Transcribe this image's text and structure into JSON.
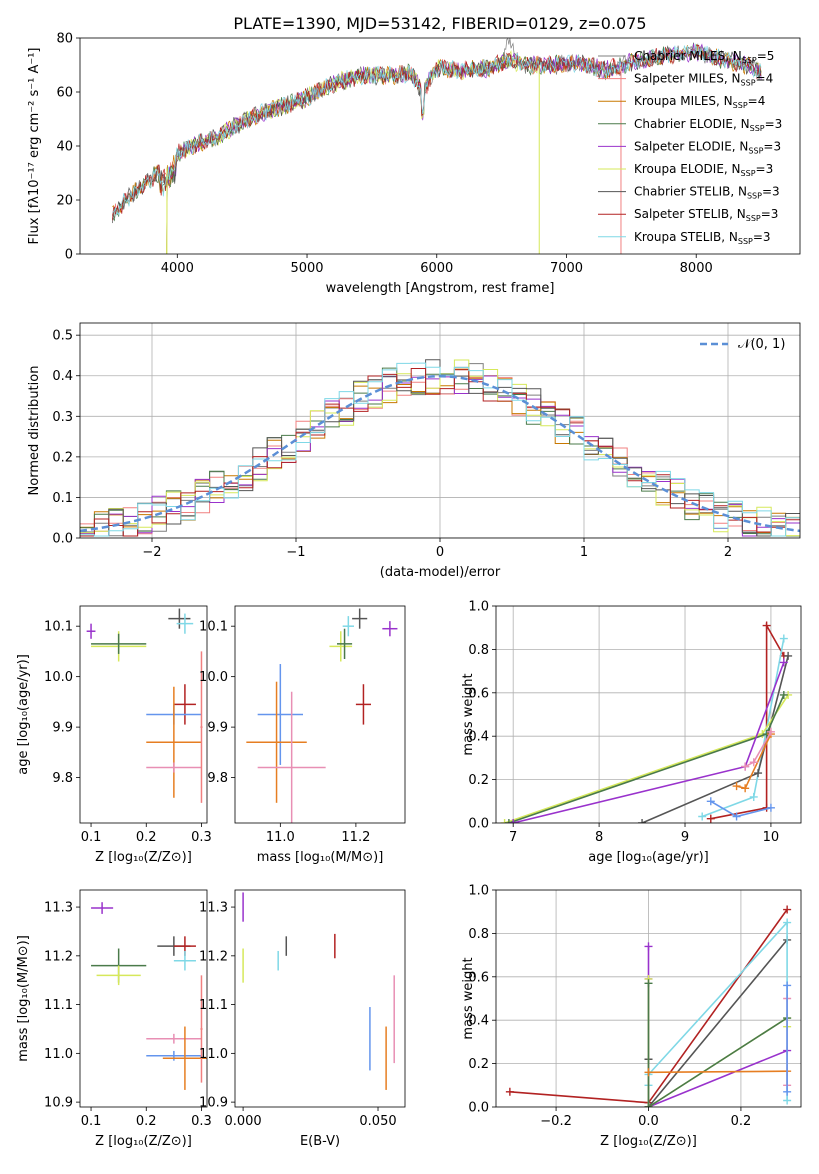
{
  "colors": {
    "chabrier_miles": "#7f7f7f",
    "salpeter_miles": "#f08080",
    "kroupa_miles": "#c87800",
    "chabrier_elodie": "#4a7a4a",
    "salpeter_elodie": "#9932cc",
    "kroupa_elodie": "#d6e85a",
    "chabrier_stelib": "#555555",
    "salpeter_stelib": "#b22222",
    "kroupa_stelib": "#7fd8e6",
    "blue": "#6495ed",
    "orange": "#e67e22",
    "pink": "#e88fb4",
    "normal": "#5b8fd6",
    "grid": "#b0b0b0"
  },
  "chart_data": [
    {
      "type": "line",
      "title": "PLATE=1390, MJD=53142, FIBERID=0129, z=0.075",
      "xlabel": "wavelength [Angstrom, rest frame]",
      "ylabel": "Flux [fλ10⁻¹⁷ erg cm⁻² s⁻¹ A⁻¹]",
      "xlim": [
        3250,
        8800
      ],
      "ylim": [
        0,
        80
      ],
      "xticks": [
        "4000",
        "5000",
        "6000",
        "7000",
        "8000"
      ],
      "yticks": [
        "0",
        "20",
        "40",
        "60",
        "80"
      ],
      "grid": false,
      "legend_position": "right",
      "legend": [
        {
          "name": "Chabrier MILES, N",
          "sub": "SSP",
          "tail": "=5",
          "color": "chabrier_miles"
        },
        {
          "name": "Salpeter MILES, N",
          "sub": "SSP",
          "tail": "=4",
          "color": "salpeter_miles"
        },
        {
          "name": "Kroupa MILES, N",
          "sub": "SSP",
          "tail": "=4",
          "color": "kroupa_miles"
        },
        {
          "name": "Chabrier ELODIE, N",
          "sub": "SSP",
          "tail": "=3",
          "color": "chabrier_elodie"
        },
        {
          "name": "Salpeter ELODIE, N",
          "sub": "SSP",
          "tail": "=3",
          "color": "salpeter_elodie"
        },
        {
          "name": "Kroupa ELODIE, N",
          "sub": "SSP",
          "tail": "=3",
          "color": "kroupa_elodie"
        },
        {
          "name": "Chabrier STELIB, N",
          "sub": "SSP",
          "tail": "=3",
          "color": "chabrier_stelib"
        },
        {
          "name": "Salpeter STELIB, N",
          "sub": "SSP",
          "tail": "=3",
          "color": "salpeter_stelib"
        },
        {
          "name": "Kroupa STELIB, N",
          "sub": "SSP",
          "tail": "=3",
          "color": "kroupa_stelib"
        }
      ],
      "spectrum_anchors": {
        "x": [
          3500,
          3600,
          3700,
          3800,
          3950,
          4000,
          4100,
          4300,
          4400,
          4500,
          4700,
          4900,
          5000,
          5200,
          5400,
          5600,
          5800,
          5890,
          6000,
          6200,
          6400,
          6563,
          6700,
          6900,
          7100,
          7300,
          7500,
          7700,
          8000,
          8200,
          8400,
          8500
        ],
        "y": [
          14,
          20,
          24,
          28,
          33,
          37,
          40,
          43,
          46,
          49,
          53,
          56,
          58,
          63,
          66,
          66,
          67,
          60,
          69,
          68,
          69,
          72,
          70,
          70,
          71,
          68,
          71,
          73,
          75,
          72,
          70,
          67
        ]
      },
      "annotations": [
        {
          "text": "drop to 0 near 3920 (Salpeter/Kroupa ELODIE)",
          "x": 3920
        },
        {
          "text": "drop to 0 near 6790 (Kroupa ELODIE)",
          "x": 6790
        },
        {
          "text": "drop to 0 near 7420 (Salpeter MILES)",
          "x": 7420
        }
      ]
    },
    {
      "type": "step",
      "xlabel": "(data-model)/error",
      "ylabel": "Normed distribution",
      "xlim": [
        -2.5,
        2.5
      ],
      "ylim": [
        0,
        0.53
      ],
      "xticks": [
        "−2",
        "−1",
        "0",
        "1",
        "2"
      ],
      "yticks": [
        "0.0",
        "0.1",
        "0.2",
        "0.3",
        "0.4",
        "0.5"
      ],
      "grid": true,
      "legend_position": "top-right",
      "legend": [
        {
          "name": "𝒩(0, 1)",
          "color": "normal",
          "style": "dashed"
        }
      ],
      "bin_width": 0.1,
      "curve": "normal pdf (mean 0, sd 1)"
    },
    {
      "type": "scatter",
      "xlabel": "Z [log₁₀(Z/Z⊙)]",
      "ylabel": "age  [log₁₀(age/yr)]",
      "xlim": [
        0.08,
        0.31
      ],
      "ylim": [
        9.71,
        10.14
      ],
      "xticks": [
        "0.1",
        "0.2",
        "0.3"
      ],
      "yticks": [
        "9.8",
        "9.9",
        "10.0",
        "10.1"
      ],
      "points": [
        {
          "x": 0.1,
          "y": 10.09,
          "xerr": 0.008,
          "yerr": 0.015,
          "color": "salpeter_elodie",
          "xwe": 0.03
        },
        {
          "x": 0.15,
          "y": 10.06,
          "xerr": 0.05,
          "yerr": 0.03,
          "color": "kroupa_elodie"
        },
        {
          "x": 0.15,
          "y": 10.065,
          "xerr": 0.05,
          "yerr": 0.02,
          "color": "chabrier_elodie"
        },
        {
          "x": 0.26,
          "y": 10.115,
          "xerr": 0.02,
          "yerr": 0.02,
          "color": "chabrier_stelib"
        },
        {
          "x": 0.27,
          "y": 10.105,
          "xerr": 0.015,
          "yerr": 0.02,
          "color": "kroupa_stelib"
        },
        {
          "x": 0.27,
          "y": 9.945,
          "xerr": 0.02,
          "yerr": 0.04,
          "color": "salpeter_stelib"
        },
        {
          "x": 0.25,
          "y": 9.925,
          "xerr": 0.05,
          "yerr": 0.02,
          "color": "blue"
        },
        {
          "x": 0.25,
          "y": 9.87,
          "xerr": 0.05,
          "yerr": 0.11,
          "color": "orange"
        },
        {
          "x": 0.25,
          "y": 9.82,
          "xerr": 0.05,
          "yerr": 0.01,
          "color": "pink"
        },
        {
          "x": 0.3,
          "y": 9.9,
          "xerr": 0.002,
          "yerr": 0.15,
          "color": "salpeter_miles"
        }
      ]
    },
    {
      "type": "scatter",
      "xlabel": "mass [log₁₀(M/M⊙)]",
      "xlim": [
        10.88,
        11.33
      ],
      "ylim": [
        9.71,
        10.14
      ],
      "xticks": [
        "11.0",
        "11.2"
      ],
      "yticks": [
        "9.8",
        "9.9",
        "10.0",
        "10.1"
      ],
      "points": [
        {
          "x": 11.29,
          "y": 10.095,
          "xerr": 0.02,
          "yerr": 0.015,
          "color": "salpeter_elodie"
        },
        {
          "x": 11.21,
          "y": 10.115,
          "xerr": 0.02,
          "yerr": 0.02,
          "color": "chabrier_stelib"
        },
        {
          "x": 11.18,
          "y": 10.1,
          "xerr": 0.015,
          "yerr": 0.02,
          "color": "kroupa_stelib"
        },
        {
          "x": 11.16,
          "y": 10.06,
          "xerr": 0.03,
          "yerr": 0.03,
          "color": "kroupa_elodie"
        },
        {
          "x": 11.17,
          "y": 10.065,
          "xerr": 0.02,
          "yerr": 0.03,
          "color": "chabrier_elodie"
        },
        {
          "x": 11.22,
          "y": 9.945,
          "xerr": 0.02,
          "yerr": 0.04,
          "color": "salpeter_stelib"
        },
        {
          "x": 11.0,
          "y": 9.925,
          "xerr": 0.06,
          "yerr": 0.1,
          "color": "blue"
        },
        {
          "x": 10.99,
          "y": 9.87,
          "xerr": 0.08,
          "yerr": 0.12,
          "color": "orange"
        },
        {
          "x": 11.03,
          "y": 9.82,
          "xerr": 0.09,
          "yerr": 0.15,
          "color": "pink"
        }
      ]
    },
    {
      "type": "line",
      "xlabel": "age  [log₁₀(age/yr)]",
      "ylabel": "mass weight",
      "xlim": [
        6.8,
        10.35
      ],
      "ylim": [
        0,
        1.0
      ],
      "xticks": [
        "7",
        "8",
        "9",
        "10"
      ],
      "yticks": [
        "0.0",
        "0.2",
        "0.4",
        "0.6",
        "0.8",
        "1.0"
      ],
      "grid": true,
      "series": [
        {
          "color": "salpeter_stelib",
          "x": [
            9.3,
            9.95,
            9.95,
            10.15
          ],
          "y": [
            0.02,
            0.07,
            0.91,
            0.77
          ]
        },
        {
          "color": "kroupa_stelib",
          "x": [
            9.2,
            9.8,
            10.15
          ],
          "y": [
            0.03,
            0.12,
            0.85
          ]
        },
        {
          "color": "chabrier_stelib",
          "x": [
            8.5,
            9.85,
            10.2
          ],
          "y": [
            0.0,
            0.23,
            0.77
          ]
        },
        {
          "color": "kroupa_elodie",
          "x": [
            6.9,
            9.9,
            10.2
          ],
          "y": [
            0.0,
            0.41,
            0.59
          ]
        },
        {
          "color": "chabrier_elodie",
          "x": [
            6.95,
            9.95,
            10.15
          ],
          "y": [
            0.0,
            0.41,
            0.59
          ]
        },
        {
          "color": "salpeter_elodie",
          "x": [
            7.0,
            9.7,
            10.15
          ],
          "y": [
            0.0,
            0.26,
            0.74
          ]
        },
        {
          "color": "blue",
          "x": [
            9.3,
            9.6,
            10.0
          ],
          "y": [
            0.1,
            0.03,
            0.07
          ]
        },
        {
          "color": "orange",
          "x": [
            9.6,
            9.7,
            10.0
          ],
          "y": [
            0.17,
            0.16,
            0.41
          ]
        },
        {
          "color": "pink",
          "x": [
            9.7,
            9.8,
            10.0
          ],
          "y": [
            0.26,
            0.28,
            0.42
          ]
        }
      ]
    },
    {
      "type": "scatter",
      "xlabel": "Z [log₁₀(Z/Z⊙)]",
      "ylabel": "mass [log₁₀(M/M⊙)]",
      "xlim": [
        0.08,
        0.31
      ],
      "ylim": [
        10.89,
        11.335
      ],
      "xticks": [
        "0.1",
        "0.2",
        "0.3"
      ],
      "yticks": [
        "10.9",
        "11.0",
        "11.1",
        "11.2",
        "11.3"
      ],
      "points": [
        {
          "x": 0.12,
          "y": 11.298,
          "xerr": 0.02,
          "yerr": 0.012,
          "color": "salpeter_elodie"
        },
        {
          "x": 0.15,
          "y": 11.18,
          "xerr": 0.05,
          "yerr": 0.035,
          "color": "chabrier_elodie"
        },
        {
          "x": 0.15,
          "y": 11.16,
          "xerr": 0.04,
          "yerr": 0.02,
          "color": "kroupa_elodie"
        },
        {
          "x": 0.25,
          "y": 11.22,
          "xerr": 0.03,
          "yerr": 0.02,
          "color": "chabrier_stelib"
        },
        {
          "x": 0.27,
          "y": 11.22,
          "xerr": 0.02,
          "yerr": 0.02,
          "color": "salpeter_stelib"
        },
        {
          "x": 0.27,
          "y": 11.19,
          "xerr": 0.02,
          "yerr": 0.02,
          "color": "kroupa_stelib"
        },
        {
          "x": 0.25,
          "y": 11.03,
          "xerr": 0.05,
          "yerr": 0.01,
          "color": "pink"
        },
        {
          "x": 0.25,
          "y": 10.995,
          "xerr": 0.05,
          "yerr": 0.01,
          "color": "blue"
        },
        {
          "x": 0.27,
          "y": 10.99,
          "xerr": 0.04,
          "yerr": 0.065,
          "color": "orange"
        },
        {
          "x": 0.3,
          "y": 11.05,
          "xerr": 0.002,
          "yerr": 0.11,
          "color": "salpeter_miles"
        }
      ]
    },
    {
      "type": "scatter",
      "xlabel": "E(B-V)",
      "xlim": [
        -0.003,
        0.06
      ],
      "ylim": [
        10.89,
        11.335
      ],
      "xticks": [
        "0.000",
        "0.050"
      ],
      "yticks": [
        "10.9",
        "11.0",
        "11.1",
        "11.2",
        "11.3"
      ],
      "points": [
        {
          "x": 0.0,
          "y": 11.3,
          "xerr": 0,
          "yerr": 0.03,
          "color": "salpeter_elodie"
        },
        {
          "x": 0.0,
          "y": 11.18,
          "xerr": 0,
          "yerr": 0.035,
          "color": "kroupa_elodie"
        },
        {
          "x": 0.013,
          "y": 11.19,
          "xerr": 0,
          "yerr": 0.02,
          "color": "kroupa_stelib"
        },
        {
          "x": 0.016,
          "y": 11.22,
          "xerr": 0,
          "yerr": 0.02,
          "color": "chabrier_stelib"
        },
        {
          "x": 0.034,
          "y": 11.22,
          "xerr": 0,
          "yerr": 0.025,
          "color": "salpeter_stelib"
        },
        {
          "x": 0.047,
          "y": 11.03,
          "xerr": 0,
          "yerr": 0.065,
          "color": "blue"
        },
        {
          "x": 0.053,
          "y": 10.99,
          "xerr": 0,
          "yerr": 0.065,
          "color": "orange"
        },
        {
          "x": 0.056,
          "y": 11.07,
          "xerr": 0,
          "yerr": 0.09,
          "color": "pink"
        }
      ]
    },
    {
      "type": "line",
      "xlabel": "Z [log₁₀(Z/Z⊙)]",
      "ylabel": "mass weight",
      "xlim": [
        -0.33,
        0.33
      ],
      "ylim": [
        0,
        1.0
      ],
      "xticks": [
        "−0.2",
        "0.0",
        "0.2"
      ],
      "yticks": [
        "0.0",
        "0.2",
        "0.4",
        "0.6",
        "0.8",
        "1.0"
      ],
      "grid": true,
      "series": [
        {
          "color": "salpeter_stelib",
          "x": [
            -0.3,
            0.0,
            0.3
          ],
          "y": [
            0.07,
            0.02,
            0.91
          ]
        },
        {
          "color": "chabrier_stelib",
          "x": [
            0.0,
            0.0,
            0.3
          ],
          "y": [
            0.22,
            0.0,
            0.77
          ]
        },
        {
          "color": "kroupa_stelib",
          "x": [
            0.0,
            0.0,
            0.3,
            0.3
          ],
          "y": [
            0.1,
            0.15,
            0.85,
            0.03
          ]
        },
        {
          "color": "salpeter_elodie",
          "x": [
            0.0,
            0.0,
            0.0,
            0.3
          ],
          "y": [
            0.74,
            0.59,
            0.0,
            0.26
          ]
        },
        {
          "color": "kroupa_elodie",
          "x": [
            0.0,
            0.0,
            0.3,
            0.3
          ],
          "y": [
            0.59,
            0.0,
            0.41,
            0.37
          ]
        },
        {
          "color": "chabrier_elodie",
          "x": [
            0.0,
            0.0,
            0.3
          ],
          "y": [
            0.57,
            0.0,
            0.41
          ]
        },
        {
          "color": "orange",
          "x": [
            0.0,
            0.3
          ],
          "y": [
            0.16,
            0.165
          ]
        },
        {
          "color": "pink",
          "x": [
            0.3,
            0.3
          ],
          "y": [
            0.5,
            0.1
          ]
        },
        {
          "color": "blue",
          "x": [
            0.3,
            0.3
          ],
          "y": [
            0.56,
            0.07
          ]
        }
      ]
    }
  ]
}
